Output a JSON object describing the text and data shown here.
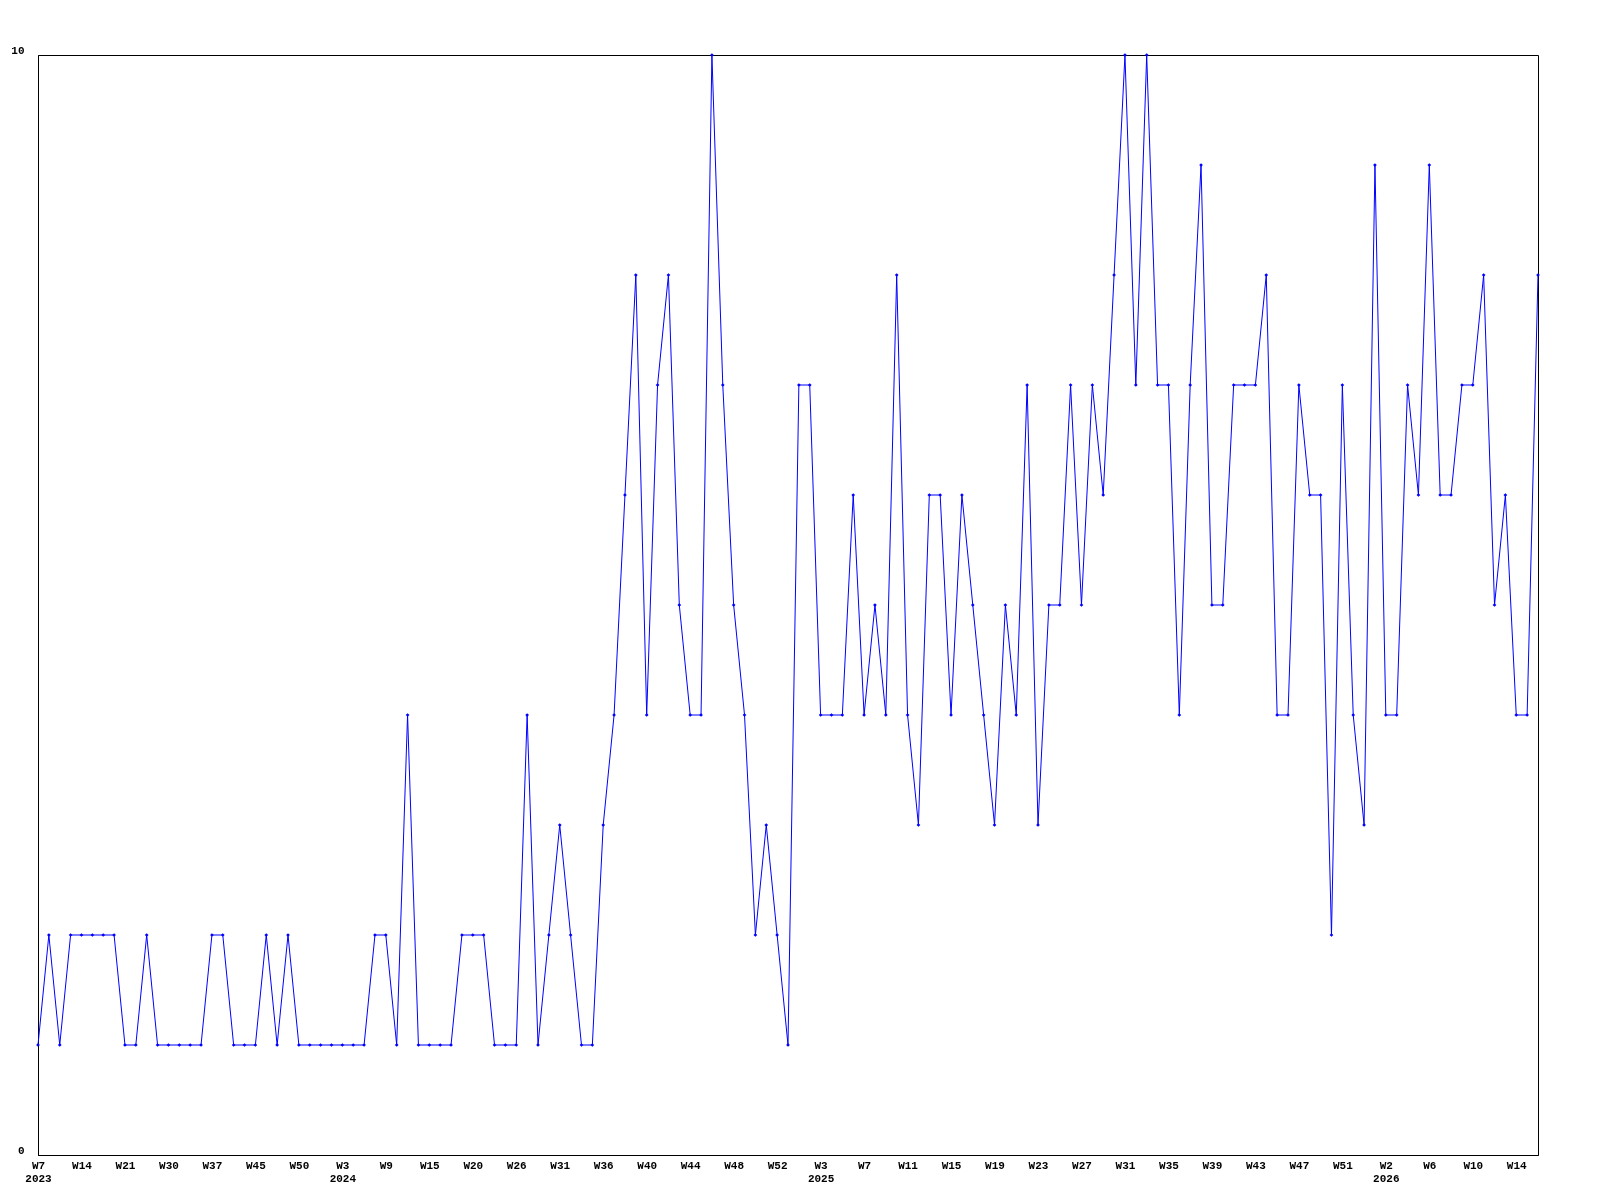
{
  "chart_data": {
    "type": "line",
    "categories": [
      "W7\n2023",
      null,
      null,
      null,
      "W14",
      null,
      null,
      null,
      "W21",
      null,
      null,
      null,
      "W30",
      null,
      null,
      null,
      "W37",
      null,
      null,
      null,
      "W45",
      null,
      null,
      null,
      "W50",
      null,
      null,
      null,
      "W3\n2024",
      null,
      null,
      null,
      "W9",
      null,
      null,
      null,
      "W15",
      null,
      null,
      null,
      "W20",
      null,
      null,
      null,
      "W26",
      null,
      null,
      null,
      "W31",
      null,
      null,
      null,
      "W36",
      null,
      null,
      null,
      "W40",
      null,
      null,
      null,
      "W44",
      null,
      null,
      null,
      "W48",
      null,
      null,
      null,
      "W52",
      null,
      null,
      null,
      "W3\n2025",
      null,
      null,
      null,
      "W7",
      null,
      null,
      null,
      "W11",
      null,
      null,
      null,
      "W15",
      null,
      null,
      null,
      "W19",
      null,
      null,
      null,
      "W23",
      null,
      null,
      null,
      "W27",
      null,
      null,
      null,
      "W31",
      null,
      null,
      null,
      "W35",
      null,
      null,
      null,
      "W39",
      null,
      null,
      null,
      "W43",
      null,
      null,
      null,
      "W47",
      null,
      null,
      null,
      "W51",
      null,
      null,
      null,
      "W2\n2026",
      null,
      null,
      null,
      "W6",
      null,
      null,
      null,
      "W10",
      null,
      null,
      null,
      "W14",
      null,
      null
    ],
    "series": [
      {
        "color": "#0000ff",
        "values": [
          1,
          2,
          1,
          2,
          2,
          2,
          2,
          2,
          1,
          1,
          2,
          1,
          1,
          1,
          1,
          1,
          2,
          2,
          1,
          1,
          1,
          2,
          1,
          2,
          1,
          1,
          1,
          1,
          1,
          1,
          1,
          2,
          2,
          1,
          4,
          1,
          1,
          1,
          1,
          2,
          2,
          2,
          1,
          1,
          1,
          4,
          1,
          2,
          3,
          2,
          1,
          1,
          3,
          4,
          6,
          8,
          4,
          7,
          8,
          5,
          4,
          4,
          10,
          7,
          5,
          4,
          2,
          3,
          2,
          1,
          7,
          7,
          4,
          4,
          4,
          6,
          4,
          5,
          4,
          8,
          4,
          3,
          6,
          6,
          4,
          6,
          5,
          4,
          3,
          5,
          4,
          7,
          3,
          5,
          5,
          7,
          5,
          7,
          6,
          8,
          10,
          7,
          10,
          7,
          7,
          4,
          7,
          9,
          5,
          5,
          7,
          7,
          7,
          8,
          4,
          4,
          7,
          6,
          6,
          2,
          7,
          4,
          3,
          9,
          4,
          4,
          7,
          6,
          9,
          6,
          6,
          7,
          7,
          8,
          5,
          6,
          4,
          4,
          8
        ]
      }
    ],
    "ylim": [
      0,
      10
    ],
    "yticks": [
      0,
      10
    ],
    "marker": "diamond",
    "line_style": "solid"
  }
}
